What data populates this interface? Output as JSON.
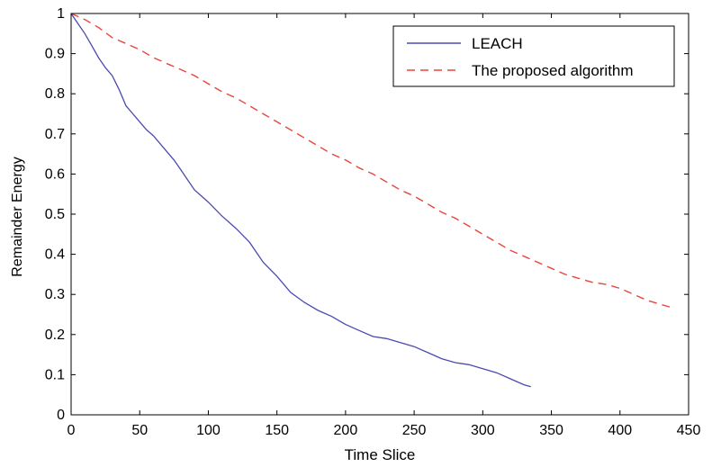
{
  "chart_data": {
    "type": "line",
    "title": "",
    "xlabel": "Time Slice",
    "ylabel": "Remainder Energy",
    "xlim": [
      0,
      450
    ],
    "ylim": [
      0,
      1
    ],
    "xticks": [
      0,
      50,
      100,
      150,
      200,
      250,
      300,
      350,
      400,
      450
    ],
    "yticks": [
      0,
      0.1,
      0.2,
      0.3,
      0.4,
      0.5,
      0.6,
      0.7,
      0.8,
      0.9,
      1
    ],
    "xtick_labels": [
      "0",
      "50",
      "100",
      "150",
      "200",
      "250",
      "300",
      "350",
      "400",
      "450"
    ],
    "ytick_labels": [
      "0",
      "0.1",
      "0.2",
      "0.3",
      "0.4",
      "0.5",
      "0.6",
      "0.7",
      "0.8",
      "0.9",
      "1"
    ],
    "grid": false,
    "legend_position": "top-right",
    "series": [
      {
        "name": "LEACH",
        "color": "#4b4bb0",
        "style": "solid",
        "x": [
          0,
          5,
          10,
          15,
          20,
          25,
          30,
          35,
          40,
          45,
          50,
          55,
          60,
          65,
          70,
          75,
          80,
          85,
          90,
          95,
          100,
          110,
          120,
          130,
          140,
          150,
          160,
          170,
          175,
          180,
          190,
          200,
          210,
          220,
          230,
          240,
          250,
          260,
          270,
          280,
          290,
          300,
          310,
          320,
          330,
          335
        ],
        "y": [
          1.0,
          0.975,
          0.95,
          0.92,
          0.89,
          0.865,
          0.845,
          0.81,
          0.77,
          0.75,
          0.73,
          0.71,
          0.695,
          0.675,
          0.655,
          0.635,
          0.61,
          0.585,
          0.56,
          0.545,
          0.53,
          0.495,
          0.465,
          0.43,
          0.38,
          0.345,
          0.305,
          0.28,
          0.27,
          0.26,
          0.245,
          0.225,
          0.21,
          0.195,
          0.19,
          0.18,
          0.17,
          0.155,
          0.14,
          0.13,
          0.125,
          0.115,
          0.105,
          0.09,
          0.075,
          0.07
        ]
      },
      {
        "name": "The proposed algorithm",
        "color": "#e8453c",
        "style": "dashed",
        "x": [
          0,
          10,
          20,
          30,
          40,
          50,
          60,
          70,
          80,
          90,
          100,
          110,
          120,
          130,
          140,
          150,
          160,
          170,
          180,
          190,
          200,
          210,
          220,
          230,
          240,
          250,
          260,
          270,
          280,
          290,
          300,
          310,
          320,
          330,
          340,
          350,
          360,
          370,
          380,
          390,
          400,
          410,
          420,
          430,
          440
        ],
        "y": [
          1.0,
          0.985,
          0.965,
          0.94,
          0.925,
          0.91,
          0.89,
          0.875,
          0.86,
          0.845,
          0.825,
          0.805,
          0.79,
          0.77,
          0.75,
          0.73,
          0.71,
          0.69,
          0.67,
          0.65,
          0.635,
          0.615,
          0.6,
          0.58,
          0.56,
          0.545,
          0.525,
          0.505,
          0.49,
          0.47,
          0.45,
          0.43,
          0.41,
          0.395,
          0.38,
          0.365,
          0.35,
          0.34,
          0.33,
          0.325,
          0.315,
          0.3,
          0.285,
          0.275,
          0.265
        ]
      }
    ]
  }
}
